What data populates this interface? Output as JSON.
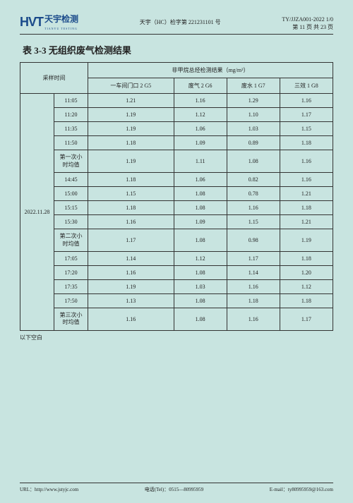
{
  "header": {
    "logo_hvt": "HVT",
    "logo_cn": "天宇检测",
    "logo_sub": "TIANYU TESTING",
    "center": "天宇（HC）检字第 221231101 号",
    "right1": "TY/JJZA001-2022 1/0",
    "right2": "第 11 页 共 23 页"
  },
  "title": "表 3-3 无组织废气检测结果",
  "table": {
    "head_col1": "采样时间",
    "head_span": "非甲烷总烃检测结果（mg/m³）",
    "cols": [
      "一车间门口 2 G5",
      "废气 2 G6",
      "废水 1 G7",
      "三效 1 G8"
    ],
    "date": "2022.11.28",
    "rows": [
      {
        "t": "11:05",
        "v": [
          "1.21",
          "1.16",
          "1.29",
          "1.16"
        ]
      },
      {
        "t": "11:20",
        "v": [
          "1.19",
          "1.12",
          "1.10",
          "1.17"
        ]
      },
      {
        "t": "11:35",
        "v": [
          "1.19",
          "1.06",
          "1.03",
          "1.15"
        ]
      },
      {
        "t": "11:50",
        "v": [
          "1.18",
          "1.09",
          "0.89",
          "1.18"
        ]
      },
      {
        "t": "第一次小时均值",
        "v": [
          "1.19",
          "1.11",
          "1.08",
          "1.16"
        ]
      },
      {
        "t": "14:45",
        "v": [
          "1.18",
          "1.06",
          "0.82",
          "1.16"
        ]
      },
      {
        "t": "15:00",
        "v": [
          "1.15",
          "1.08",
          "0.78",
          "1.21"
        ]
      },
      {
        "t": "15:15",
        "v": [
          "1.18",
          "1.08",
          "1.16",
          "1.18"
        ]
      },
      {
        "t": "15:30",
        "v": [
          "1.16",
          "1.09",
          "1.15",
          "1.21"
        ]
      },
      {
        "t": "第二次小时均值",
        "v": [
          "1.17",
          "1.08",
          "0.98",
          "1.19"
        ]
      },
      {
        "t": "17:05",
        "v": [
          "1.14",
          "1.12",
          "1.17",
          "1.18"
        ]
      },
      {
        "t": "17:20",
        "v": [
          "1.16",
          "1.08",
          "1.14",
          "1.20"
        ]
      },
      {
        "t": "17:35",
        "v": [
          "1.19",
          "1.03",
          "1.16",
          "1.12"
        ]
      },
      {
        "t": "17:50",
        "v": [
          "1.13",
          "1.08",
          "1.18",
          "1.18"
        ]
      },
      {
        "t": "第三次小时均值",
        "v": [
          "1.16",
          "1.08",
          "1.16",
          "1.17"
        ]
      }
    ]
  },
  "blank_note": "以下空白",
  "footer": {
    "url_label": "URL：",
    "url": "http://www.jstyjc.com",
    "tel_label": "电话(Tel)：",
    "tel": "0515—80995959",
    "email_label": "E-mail：",
    "email": "ty80995959@163.com"
  }
}
